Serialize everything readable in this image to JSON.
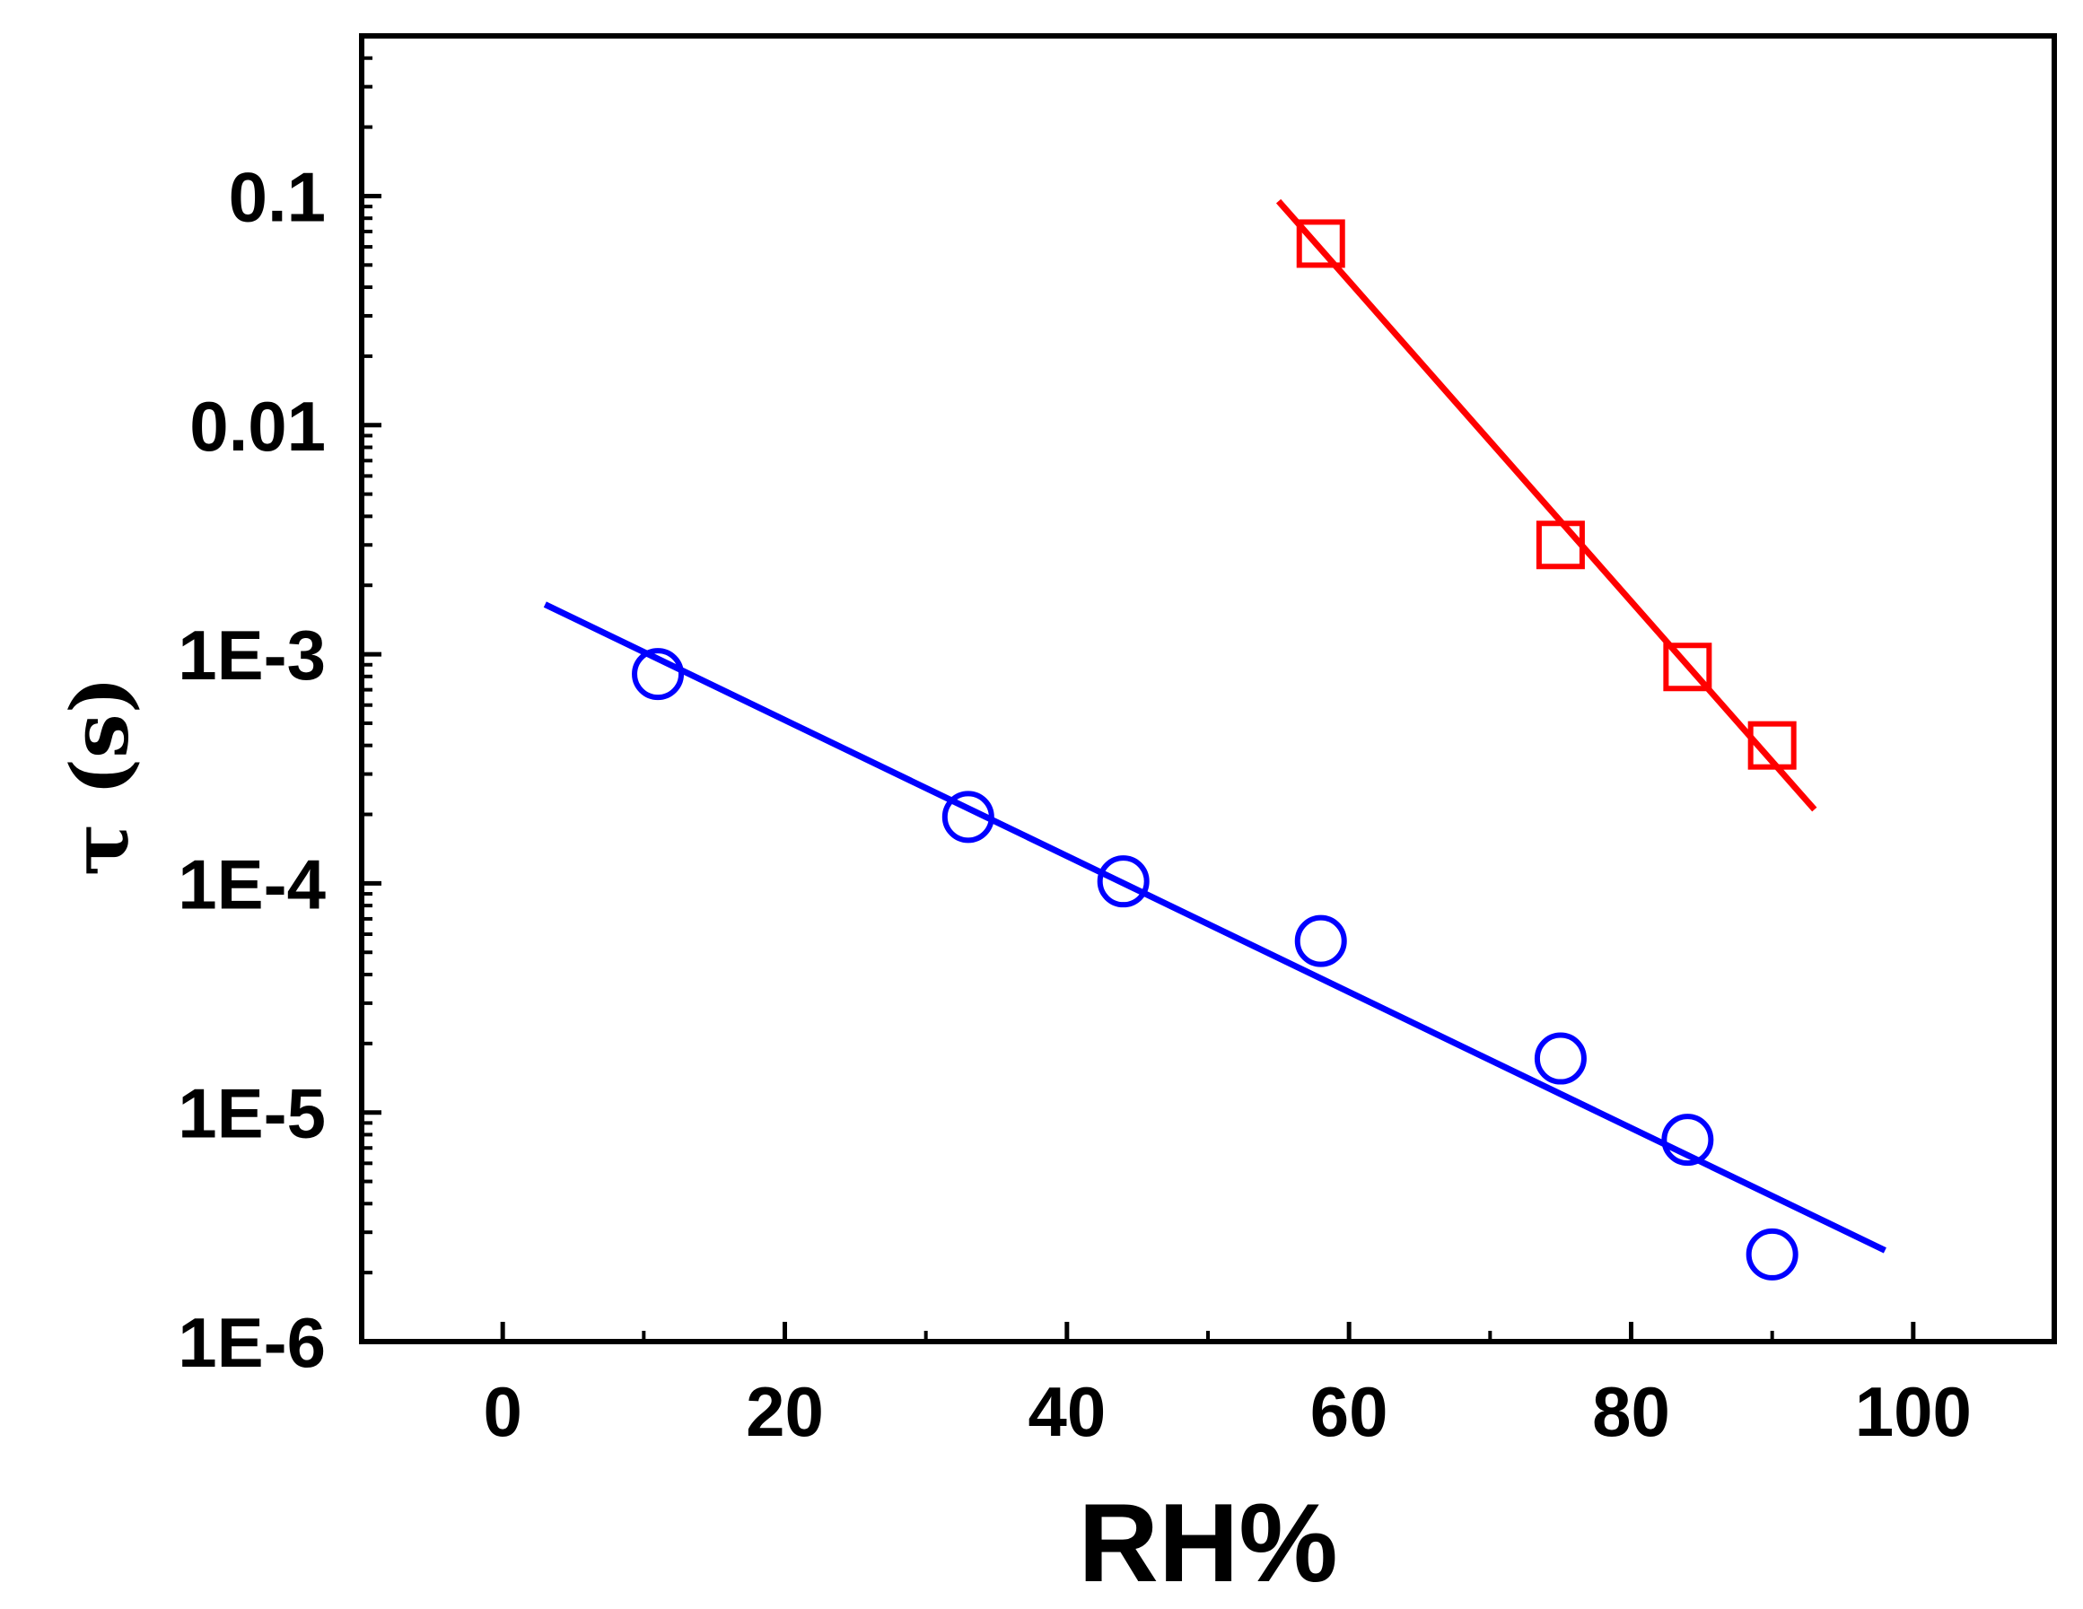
{
  "chart_data": {
    "type": "scatter",
    "title": "",
    "xlabel": "RH%",
    "ylabel": "τ (s)",
    "xlim": [
      -10,
      110
    ],
    "ylim": [
      1e-06,
      0.5
    ],
    "yscale": "log",
    "grid": false,
    "x_ticks": [
      0,
      20,
      40,
      60,
      80,
      100
    ],
    "x_tick_labels": [
      "0",
      "20",
      "40",
      "60",
      "80",
      "100"
    ],
    "y_ticks": [
      1e-06,
      1e-05,
      0.0001,
      0.001,
      0.01,
      0.1
    ],
    "y_tick_labels": [
      "1E-6",
      "1E-5",
      "1E-4",
      "1E-3",
      "0.01",
      "0.1"
    ],
    "series": [
      {
        "name": "squares",
        "marker": "square",
        "color": "#ff0000",
        "x": [
          58,
          75,
          84,
          90
        ],
        "y": [
          0.062,
          0.003,
          0.00088,
          0.0004
        ],
        "fit": {
          "x": [
            55,
            93
          ],
          "y": [
            0.095,
            0.00021
          ]
        }
      },
      {
        "name": "circles",
        "marker": "circle",
        "color": "#0000ff",
        "x": [
          11,
          33,
          44,
          58,
          75,
          84,
          90
        ],
        "y": [
          0.00082,
          0.000195,
          0.000102,
          5.6e-05,
          1.72e-05,
          7.6e-06,
          2.4e-06
        ],
        "fit": {
          "x": [
            3,
            98
          ],
          "y": [
            0.00165,
            2.5e-06
          ]
        }
      }
    ]
  }
}
